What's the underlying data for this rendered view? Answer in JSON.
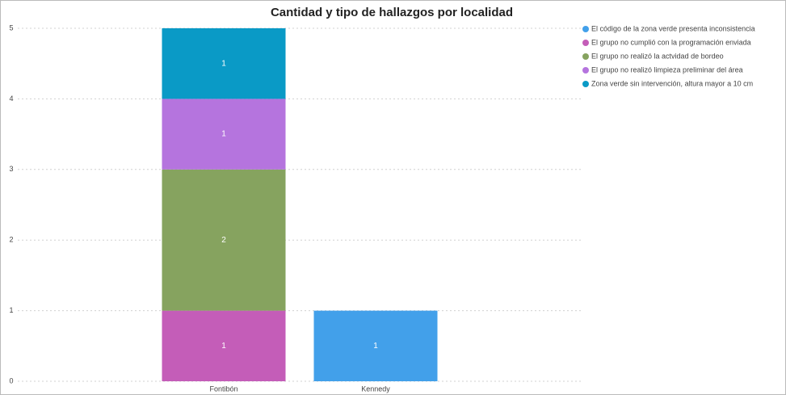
{
  "chart_data": {
    "type": "stacked_bar",
    "title": "Cantidad y tipo de hallazgos por localidad",
    "categories": [
      "Fontibón",
      "Kennedy"
    ],
    "series": [
      {
        "name": "El código de la zona verde presenta inconsistencia",
        "color": "#42a0ea",
        "values": [
          null,
          1
        ]
      },
      {
        "name": "El grupo no cumplió con la programación enviada",
        "color": "#c45db8",
        "values": [
          1,
          null
        ]
      },
      {
        "name": "El grupo no realizó la actvidad de bordeo",
        "color": "#86a35f",
        "values": [
          2,
          null
        ]
      },
      {
        "name": "El grupo no realizó limpieza preliminar del área",
        "color": "#b574de",
        "values": [
          1,
          null
        ]
      },
      {
        "name": "Zona verde sin intervención, altura mayor a 10 cm",
        "color": "#0a9ac6",
        "values": [
          1,
          null
        ]
      }
    ],
    "ylim": [
      0,
      5
    ],
    "yticks": [
      0,
      1,
      2,
      3,
      4,
      5
    ],
    "grid": true,
    "legend": "right"
  }
}
